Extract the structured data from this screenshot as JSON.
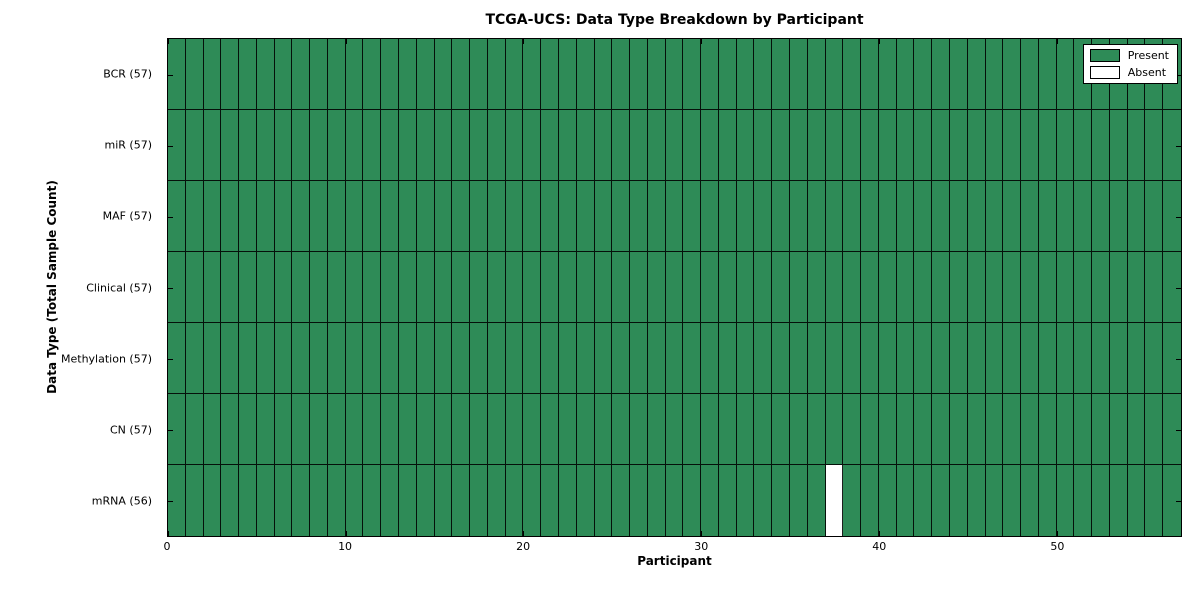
{
  "chart_data": {
    "type": "heatmap",
    "title": "TCGA-UCS: Data Type Breakdown by Participant",
    "xlabel": "Participant",
    "ylabel": "Data Type (Total Sample Count)",
    "x_range": [
      0,
      57
    ],
    "n_participants": 57,
    "x_ticks": [
      0,
      10,
      20,
      30,
      40,
      50
    ],
    "rows": [
      {
        "label": "BCR (57)",
        "data_type": "BCR",
        "sample_count": 57,
        "absent_participants": []
      },
      {
        "label": "miR (57)",
        "data_type": "miR",
        "sample_count": 57,
        "absent_participants": []
      },
      {
        "label": "MAF (57)",
        "data_type": "MAF",
        "sample_count": 57,
        "absent_participants": []
      },
      {
        "label": "Clinical (57)",
        "data_type": "Clinical",
        "sample_count": 57,
        "absent_participants": []
      },
      {
        "label": "Methylation (57)",
        "data_type": "Methylation",
        "sample_count": 57,
        "absent_participants": []
      },
      {
        "label": "CN (57)",
        "data_type": "CN",
        "sample_count": 57,
        "absent_participants": []
      },
      {
        "label": "mRNA (56)",
        "data_type": "mRNA",
        "sample_count": 56,
        "absent_participants": [
          37
        ]
      }
    ],
    "legend": [
      {
        "label": "Present",
        "color": "#2E8B57"
      },
      {
        "label": "Absent",
        "color": "#FFFFFF"
      }
    ],
    "colors": {
      "present": "#2E8B57",
      "absent": "#FFFFFF",
      "edge": "#000000",
      "background": "#FFFFFF"
    },
    "legend_position": "upper right",
    "grid": false
  }
}
